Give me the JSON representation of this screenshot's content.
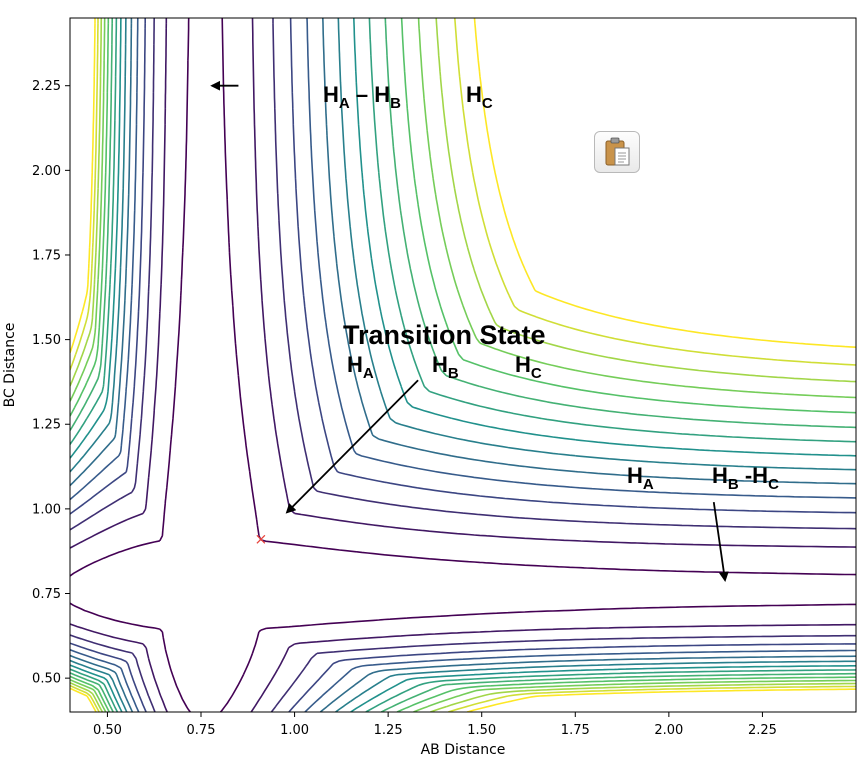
{
  "chart_data": {
    "type": "contour",
    "xlabel": "AB Distance",
    "ylabel": "BC Distance",
    "xlim": [
      0.4,
      2.5
    ],
    "ylim": [
      0.4,
      2.45
    ],
    "xticks": [
      "0.50",
      "0.75",
      "1.00",
      "1.25",
      "1.50",
      "1.75",
      "2.00",
      "2.25"
    ],
    "yticks": [
      "0.50",
      "0.75",
      "1.00",
      "1.25",
      "1.50",
      "1.75",
      "2.00",
      "2.25"
    ],
    "colormap": "viridis",
    "contour_levels": 15,
    "transition_state_marker": {
      "x": 0.91,
      "y": 0.91,
      "symbol": "x",
      "color": "#e8423b"
    },
    "annotations": [
      {
        "id": "reactant",
        "parts": [
          [
            "H",
            "A"
          ],
          [
            " – ",
            ""
          ],
          [
            "H",
            "B"
          ],
          [
            "        ",
            ""
          ],
          [
            "H",
            "C"
          ]
        ],
        "arrow_tail": [
          0.85,
          2.25
        ],
        "arrow_head": [
          0.78,
          2.25
        ]
      },
      {
        "id": "transition_title",
        "text": "Transition State"
      },
      {
        "id": "transition_atoms",
        "parts": [
          [
            "H",
            "A"
          ],
          [
            "H",
            "B"
          ],
          [
            "H",
            "C"
          ]
        ],
        "arrow_tail": [
          1.33,
          1.38
        ],
        "arrow_head": [
          0.98,
          0.99
        ]
      },
      {
        "id": "product",
        "parts": [
          [
            "H",
            "A"
          ],
          [
            "H",
            "B"
          ],
          [
            " -H",
            "C"
          ]
        ],
        "arrow_tail": [
          2.12,
          1.02
        ],
        "arrow_head": [
          2.15,
          0.79
        ]
      }
    ]
  },
  "icons": {
    "clipboard": "clipboard-icon"
  }
}
